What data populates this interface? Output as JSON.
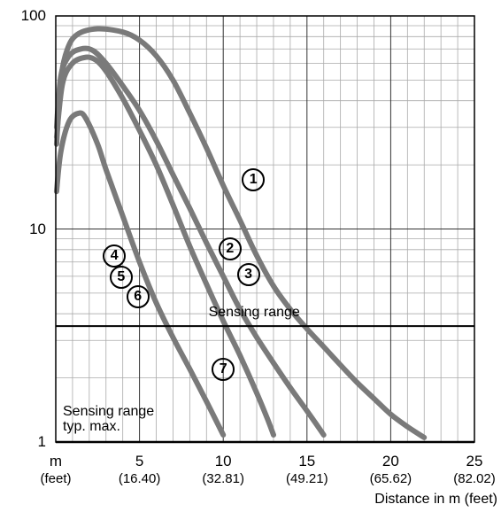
{
  "chart_data": {
    "type": "line",
    "y_scale": "log",
    "ylim": [
      1,
      100
    ],
    "xlim": [
      0,
      25
    ],
    "grid": true,
    "y_ticks": [
      {
        "value": 100,
        "label": "100"
      },
      {
        "value": 10,
        "label": "10"
      },
      {
        "value": 1,
        "label": "1"
      }
    ],
    "x_ticks": [
      {
        "value": 0,
        "label": "m",
        "sublabel": "(feet)"
      },
      {
        "value": 5,
        "label": "5",
        "sublabel": "(16.40)"
      },
      {
        "value": 10,
        "label": "10",
        "sublabel": "(32.81)"
      },
      {
        "value": 15,
        "label": "15",
        "sublabel": "(49.21)"
      },
      {
        "value": 20,
        "label": "20",
        "sublabel": "(65.62)"
      },
      {
        "value": 25,
        "label": "25",
        "sublabel": "(82.02)"
      }
    ],
    "xlabel": "Distance in m (feet)",
    "ylabel": "",
    "series": [
      {
        "id": "curve-1",
        "label_char": "①",
        "label_pos": [
          11.8,
          17
        ],
        "points": [
          [
            0.05,
            25
          ],
          [
            0.3,
            50
          ],
          [
            0.7,
            70
          ],
          [
            1.3,
            82
          ],
          [
            2.5,
            87
          ],
          [
            4,
            84
          ],
          [
            5,
            77
          ],
          [
            6,
            65
          ],
          [
            7,
            50
          ],
          [
            8,
            35
          ],
          [
            9,
            24
          ],
          [
            10,
            16
          ],
          [
            11,
            11
          ],
          [
            12,
            7.5
          ],
          [
            13,
            5.4
          ],
          [
            14,
            4.2
          ],
          [
            15,
            3.4
          ],
          [
            16,
            2.8
          ],
          [
            17,
            2.3
          ],
          [
            18,
            1.9
          ],
          [
            19,
            1.6
          ],
          [
            20,
            1.35
          ],
          [
            21,
            1.18
          ],
          [
            22,
            1.05
          ]
        ]
      },
      {
        "id": "curve-2",
        "label_char": "②",
        "label_pos": [
          10.4,
          8.1
        ],
        "points": [
          [
            0.05,
            30
          ],
          [
            0.3,
            52
          ],
          [
            0.8,
            65
          ],
          [
            1.5,
            70
          ],
          [
            2.2,
            69
          ],
          [
            3,
            60
          ],
          [
            4,
            47
          ],
          [
            5,
            36
          ],
          [
            6,
            26
          ],
          [
            7,
            18
          ],
          [
            8,
            12.5
          ],
          [
            9,
            8.6
          ],
          [
            10,
            6
          ],
          [
            11,
            4.2
          ],
          [
            12,
            3.1
          ],
          [
            13,
            2.35
          ],
          [
            14,
            1.8
          ],
          [
            15,
            1.4
          ],
          [
            16,
            1.08
          ]
        ]
      },
      {
        "id": "curve-3",
        "label_char": "③",
        "label_pos": [
          11.5,
          6.1
        ],
        "points": [
          [
            0.05,
            27
          ],
          [
            0.4,
            48
          ],
          [
            1,
            60
          ],
          [
            1.8,
            64
          ],
          [
            2.4,
            62
          ],
          [
            3,
            55
          ],
          [
            4,
            41
          ],
          [
            5,
            29
          ],
          [
            6,
            20
          ],
          [
            7,
            13
          ],
          [
            8,
            8.3
          ],
          [
            9,
            5.5
          ],
          [
            10,
            3.7
          ],
          [
            11,
            2.55
          ],
          [
            12,
            1.7
          ],
          [
            12.7,
            1.25
          ],
          [
            13,
            1.08
          ]
        ]
      },
      {
        "id": "curve-7",
        "label_char": "⑦",
        "label_pos": [
          10,
          2.2
        ],
        "points": [
          [
            0.05,
            15
          ],
          [
            0.3,
            23
          ],
          [
            0.8,
            32
          ],
          [
            1.4,
            35
          ],
          [
            1.8,
            33
          ],
          [
            2.5,
            25
          ],
          [
            3,
            19
          ],
          [
            4,
            11.5
          ],
          [
            5,
            7
          ],
          [
            6,
            4.5
          ],
          [
            7,
            3.1
          ],
          [
            8,
            2.2
          ],
          [
            9,
            1.55
          ],
          [
            10,
            1.08
          ]
        ]
      }
    ],
    "group_labels": [
      {
        "label_char": "④",
        "label_pos": [
          3.5,
          7.5
        ]
      },
      {
        "label_char": "⑤",
        "label_pos": [
          3.9,
          5.95
        ]
      },
      {
        "label_char": "⑥",
        "label_pos": [
          4.9,
          4.8
        ]
      }
    ],
    "reference_lines": [
      {
        "value": 3.5,
        "label": "Sensing range"
      },
      {
        "value": 1,
        "label_lines": [
          "Sensing range",
          "typ. max."
        ]
      }
    ]
  }
}
